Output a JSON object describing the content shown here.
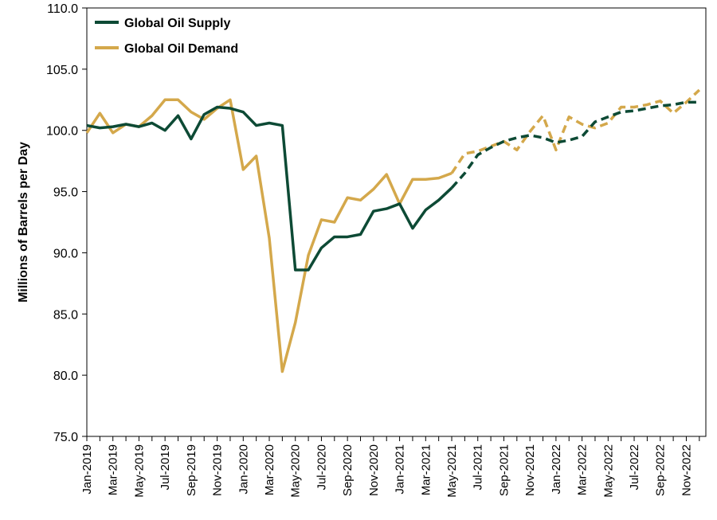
{
  "chart_data": {
    "type": "line",
    "title": "",
    "xlabel": "",
    "ylabel": "Millions of Barrels per Day",
    "ylim": [
      75.0,
      110.0
    ],
    "y_ticks": [
      "75.0",
      "80.0",
      "85.0",
      "90.0",
      "95.0",
      "100.0",
      "105.0",
      "110.0"
    ],
    "x_tick_labels": [
      "Jan-2019",
      "Mar-2019",
      "May-2019",
      "Jul-2019",
      "Sep-2019",
      "Nov-2019",
      "Jan-2020",
      "Mar-2020",
      "May-2020",
      "Jul-2020",
      "Sep-2020",
      "Nov-2020",
      "Jan-2021",
      "Mar-2021",
      "May-2021",
      "Jul-2021",
      "Sep-2021",
      "Nov-2021",
      "Jan-2022",
      "Mar-2022",
      "May-2022",
      "Jul-2022",
      "Sep-2022",
      "Nov-2022"
    ],
    "x": [
      "Jan-2019",
      "Feb-2019",
      "Mar-2019",
      "Apr-2019",
      "May-2019",
      "Jun-2019",
      "Jul-2019",
      "Aug-2019",
      "Sep-2019",
      "Oct-2019",
      "Nov-2019",
      "Dec-2019",
      "Jan-2020",
      "Feb-2020",
      "Mar-2020",
      "Apr-2020",
      "May-2020",
      "Jun-2020",
      "Jul-2020",
      "Aug-2020",
      "Sep-2020",
      "Oct-2020",
      "Nov-2020",
      "Dec-2020",
      "Jan-2021",
      "Feb-2021",
      "Mar-2021",
      "Apr-2021",
      "May-2021",
      "Jun-2021",
      "Jul-2021",
      "Aug-2021",
      "Sep-2021",
      "Oct-2021",
      "Nov-2021",
      "Dec-2021",
      "Jan-2022",
      "Feb-2022",
      "Mar-2022",
      "Apr-2022",
      "May-2022",
      "Jun-2022",
      "Jul-2022",
      "Aug-2022",
      "Sep-2022",
      "Oct-2022",
      "Nov-2022",
      "Dec-2022"
    ],
    "grid": false,
    "legend_position": "top-left",
    "series": [
      {
        "name": "Global Oil Supply",
        "color": "#0d4a35",
        "values": [
          100.4,
          100.2,
          100.3,
          100.5,
          100.3,
          100.6,
          100.0,
          101.2,
          99.3,
          101.3,
          101.9,
          101.8,
          101.5,
          100.4,
          100.6,
          100.4,
          88.6,
          88.6,
          90.4,
          91.3,
          91.3,
          91.5,
          93.4,
          93.6,
          94.0,
          92.0,
          93.5,
          94.3,
          95.3,
          96.5,
          98.0,
          98.6,
          99.1,
          99.4,
          99.6,
          99.4,
          99.0,
          99.2,
          99.5,
          100.7,
          101.1,
          101.5,
          101.6,
          101.8,
          102.0,
          102.1,
          102.3,
          102.3
        ],
        "projected_from_index": 28
      },
      {
        "name": "Global Oil Demand",
        "color": "#d4a84b",
        "values": [
          99.8,
          101.4,
          99.8,
          100.5,
          100.3,
          101.2,
          102.5,
          102.5,
          101.5,
          100.9,
          101.8,
          102.5,
          96.8,
          97.9,
          91.2,
          80.3,
          84.3,
          89.8,
          92.7,
          92.5,
          94.5,
          94.3,
          95.2,
          96.4,
          94.0,
          96.0,
          96.0,
          96.1,
          96.5,
          98.1,
          98.3,
          98.7,
          99.1,
          98.4,
          99.9,
          101.2,
          98.4,
          101.1,
          100.5,
          100.2,
          100.6,
          101.9,
          101.9,
          102.1,
          102.4,
          101.4,
          102.3,
          103.3
        ],
        "projected_from_index": 28
      }
    ]
  }
}
